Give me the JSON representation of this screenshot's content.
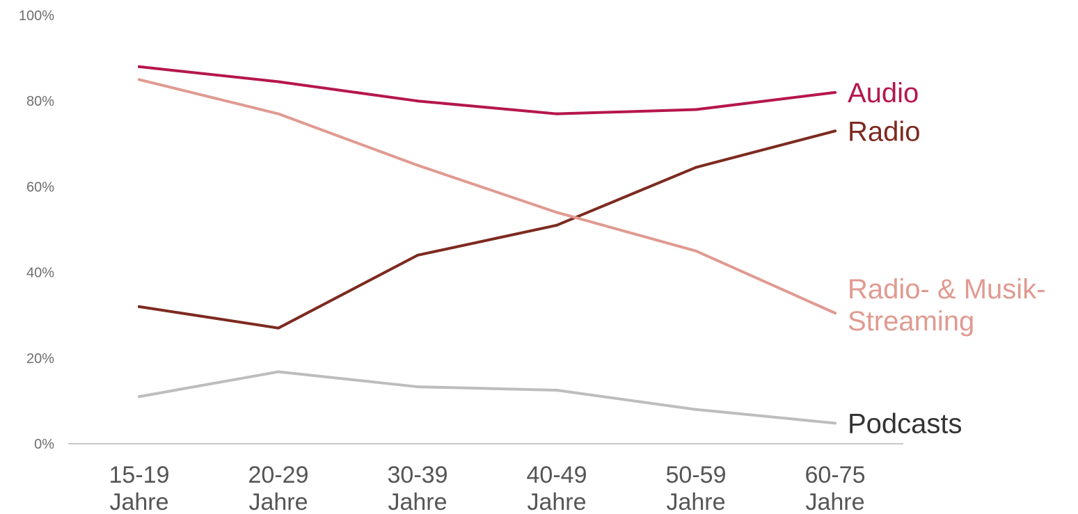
{
  "chart_data": {
    "type": "line",
    "title": "",
    "xlabel": "",
    "ylabel": "",
    "ylim": [
      0,
      100
    ],
    "grid": false,
    "yticks": [
      "0%",
      "20%",
      "40%",
      "60%",
      "80%",
      "100%"
    ],
    "categories": [
      [
        "15-19",
        "Jahre"
      ],
      [
        "20-29",
        "Jahre"
      ],
      [
        "30-39",
        "Jahre"
      ],
      [
        "40-49",
        "Jahre"
      ],
      [
        "50-59",
        "Jahre"
      ],
      [
        "60-75",
        "Jahre"
      ]
    ],
    "series": [
      {
        "name": "Audio",
        "label_lines": [
          "Audio"
        ],
        "color": "#b5174b",
        "values": [
          88,
          84.5,
          80,
          77,
          78,
          82
        ]
      },
      {
        "name": "Radio",
        "label_lines": [
          "Radio"
        ],
        "color": "#7d2a20",
        "values": [
          32,
          27,
          44,
          51,
          64.5,
          73
        ]
      },
      {
        "name": "Radio- & Musik-Streaming",
        "label_lines": [
          "Radio- & Musik-",
          "Streaming"
        ],
        "color": "#e09a91",
        "values": [
          85,
          77,
          65,
          54,
          45,
          30.5
        ]
      },
      {
        "name": "Podcasts",
        "label_lines": [
          "Podcasts"
        ],
        "color": "#bdbdbd",
        "label_color": "#333333",
        "values": [
          11,
          16.8,
          13.3,
          12.5,
          8,
          4.8
        ]
      }
    ]
  }
}
